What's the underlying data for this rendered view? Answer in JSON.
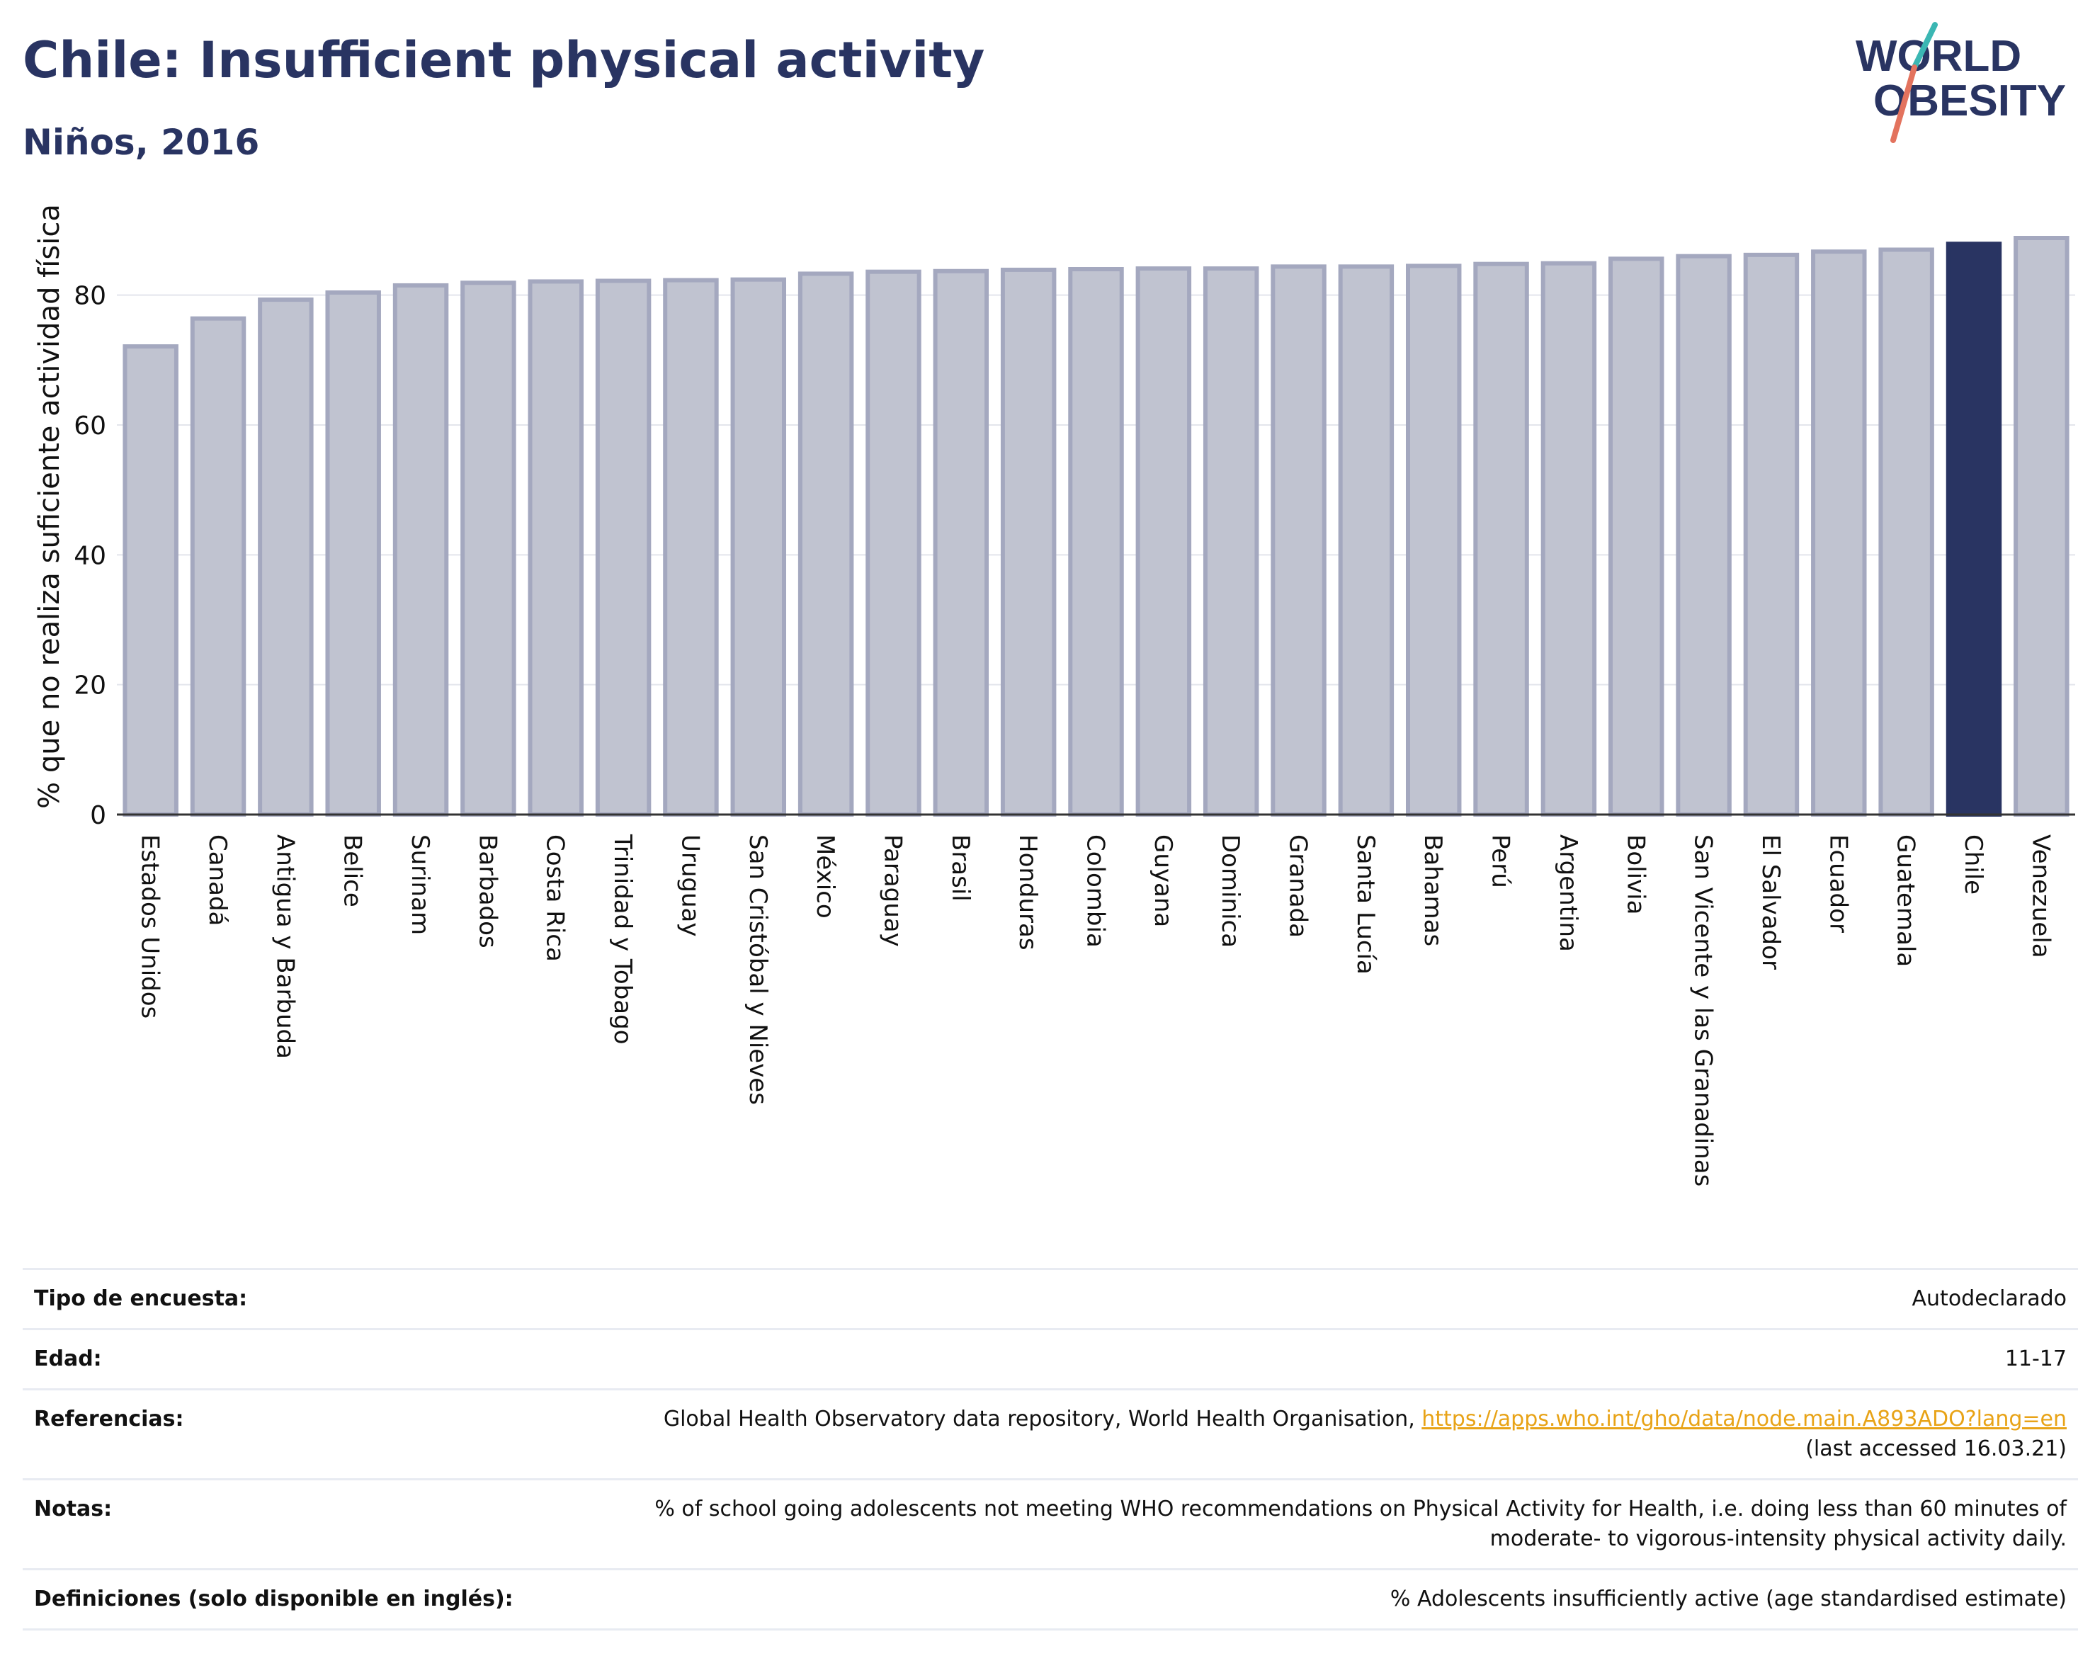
{
  "header": {
    "title": "Chile: Insufficient physical activity",
    "subtitle": "Niños, 2016"
  },
  "logo": {
    "line1": "WORLD",
    "line2": "OBESITY"
  },
  "colors": {
    "highlight": "#293462",
    "bar_fill": "#c0c3d0",
    "bar_stroke": "#a4a8bf",
    "accent_teal": "#3bb7b3",
    "accent_coral": "#e3735e"
  },
  "chart_data": {
    "type": "bar",
    "ylabel": "% que no realiza suficiente actividad física",
    "ylim": [
      0,
      90
    ],
    "yticks": [
      0,
      20,
      40,
      60,
      80
    ],
    "grid": true,
    "highlight": "Chile",
    "categories": [
      "Estados Unidos",
      "Canadá",
      "Antigua y Barbuda",
      "Belice",
      "Surinam",
      "Barbados",
      "Costa Rica",
      "Trinidad y Tobago",
      "Uruguay",
      "San Cristóbal y Nieves",
      "México",
      "Paraguay",
      "Brasil",
      "Honduras",
      "Colombia",
      "Guyana",
      "Dominica",
      "Granada",
      "Santa Lucía",
      "Bahamas",
      "Perú",
      "Argentina",
      "Bolivia",
      "San Vicente y las Granadinas",
      "El Salvador",
      "Ecuador",
      "Guatemala",
      "Chile",
      "Venezuela"
    ],
    "values": [
      72.1,
      76.4,
      79.3,
      80.4,
      81.5,
      81.9,
      82.1,
      82.2,
      82.3,
      82.4,
      83.3,
      83.6,
      83.7,
      83.9,
      84.0,
      84.1,
      84.1,
      84.4,
      84.4,
      84.5,
      84.8,
      84.9,
      85.6,
      86.0,
      86.2,
      86.7,
      87.0,
      87.9,
      88.8
    ]
  },
  "meta": {
    "survey_label": "Tipo de encuesta:",
    "survey_value": "Autodeclarado",
    "age_label": "Edad:",
    "age_value": "11-17",
    "refs_label": "Referencias:",
    "refs_text": "Global Health Observatory data repository, World Health Organisation, ",
    "refs_link": "https://apps.who.int/gho/data/node.main.A893ADO?lang=en",
    "refs_accessed": "(last accessed 16.03.21)",
    "notes_label": "Notas:",
    "notes_line1": "% of school going adolescents not meeting WHO recommendations on Physical Activity for Health, i.e. doing less than 60 minutes of",
    "notes_line2": "moderate- to vigorous-intensity physical activity daily.",
    "defs_label": "Definiciones (solo disponible en inglés):",
    "defs_value": "% Adolescents insufficiently active (age standardised estimate)"
  }
}
